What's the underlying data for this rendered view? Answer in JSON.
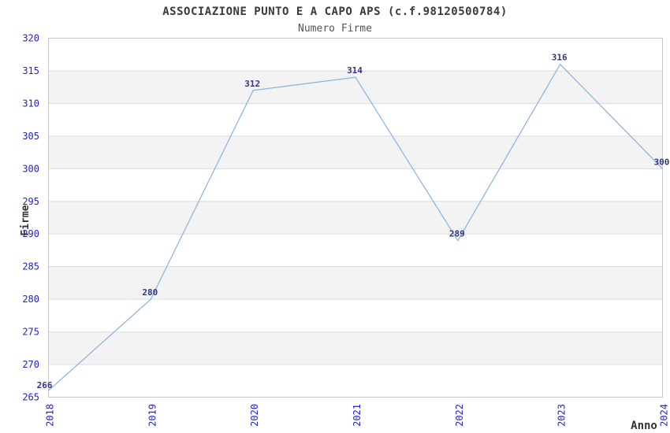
{
  "chart_data": {
    "type": "line",
    "title": "ASSOCIAZIONE PUNTO E A CAPO APS (c.f.98120500784)",
    "subtitle": "Numero Firme",
    "xlabel": "Anno",
    "ylabel": "Firme",
    "x": [
      2018,
      2019,
      2020,
      2021,
      2022,
      2023,
      2024
    ],
    "values": [
      266,
      280,
      312,
      314,
      289,
      316,
      300
    ],
    "ylim": [
      265,
      320
    ],
    "ytick_step": 5,
    "yticks": [
      265,
      270,
      275,
      280,
      285,
      290,
      295,
      300,
      305,
      310,
      315,
      320
    ],
    "grid": "horizontal-bands-alternating",
    "legend": "none",
    "colors": {
      "background": "#ffffff",
      "band_gray": "#f3f3f3",
      "band_white": "#ffffff",
      "gridline": "#dcdcdc",
      "plot_border": "#c9c9c9",
      "line": "#85b2e2",
      "tick_label": "#2222cc",
      "data_label": "#333388",
      "title": "#3a3a3a",
      "subtitle": "#555555",
      "axis_title": "#333333"
    }
  }
}
